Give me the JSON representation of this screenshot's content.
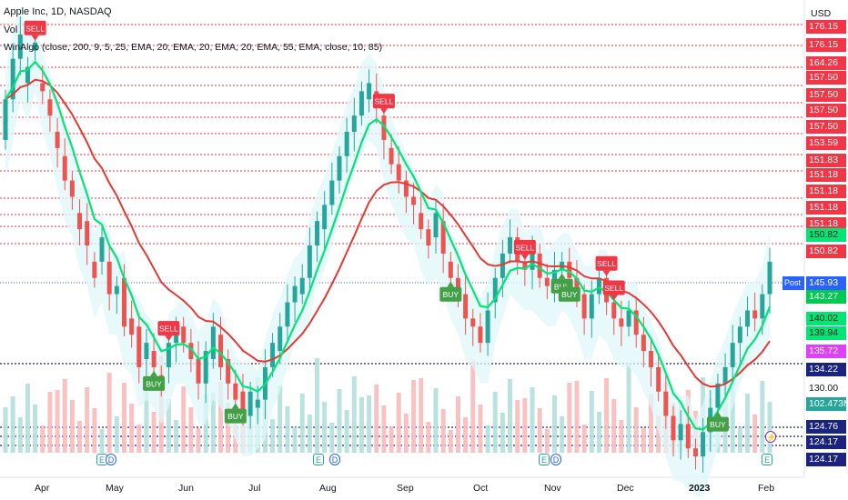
{
  "header": {
    "symbol_line": "Apple Inc, 1D, NASDAQ",
    "vol_label": "Vol",
    "indicator_line": "WinAlgo (close, 200, 9, 5, 25, EMA, 20, EMA, 20, EMA, 20, EMA, 55, EMA, close, 10, 85)"
  },
  "axis": {
    "currency": "USD",
    "months": [
      "Apr",
      "May",
      "Jun",
      "Jul",
      "Aug",
      "Sep",
      "Oct",
      "Nov",
      "Dec",
      "2023",
      "Feb"
    ]
  },
  "price_labels": [
    {
      "text": "176.15",
      "color": "#f23645",
      "fg": "#ffffff"
    },
    {
      "text": "176.15",
      "color": "#f23645",
      "fg": "#ffffff"
    },
    {
      "text": "164.26",
      "color": "#f23645",
      "fg": "#ffffff"
    },
    {
      "text": "157.50",
      "color": "#f23645",
      "fg": "#ffffff"
    },
    {
      "text": "157.50",
      "color": "#f23645",
      "fg": "#ffffff"
    },
    {
      "text": "157.50",
      "color": "#f23645",
      "fg": "#ffffff"
    },
    {
      "text": "157.50",
      "color": "#f23645",
      "fg": "#ffffff"
    },
    {
      "text": "153.59",
      "color": "#f23645",
      "fg": "#ffffff"
    },
    {
      "text": "151.83",
      "color": "#f23645",
      "fg": "#ffffff"
    },
    {
      "text": "151.18",
      "color": "#f23645",
      "fg": "#ffffff"
    },
    {
      "text": "151.18",
      "color": "#f23645",
      "fg": "#ffffff"
    },
    {
      "text": "151.18",
      "color": "#f23645",
      "fg": "#ffffff"
    },
    {
      "text": "151.18",
      "color": "#f23645",
      "fg": "#ffffff"
    },
    {
      "text": "150.82",
      "color": "#00e676",
      "fg": "#131722"
    },
    {
      "text": "150.82",
      "color": "#f23645",
      "fg": "#ffffff"
    },
    {
      "text": "145.93",
      "color": "#2962ff",
      "fg": "#ffffff"
    },
    {
      "text": "143.27",
      "color": "#00c853",
      "fg": "#ffffff"
    },
    {
      "text": "140.02",
      "color": "#00e676",
      "fg": "#131722"
    },
    {
      "text": "139.94",
      "color": "#00e676",
      "fg": "#131722"
    },
    {
      "text": "135.72",
      "color": "#e040fb",
      "fg": "#ffffff"
    },
    {
      "text": "134.22",
      "color": "#1a237e",
      "fg": "#ffffff"
    },
    {
      "text": "130.00",
      "color": "#ffffff",
      "fg": "#131722"
    },
    {
      "text": "102.473M",
      "color": "#26a69a",
      "fg": "#ffffff"
    },
    {
      "text": "124.76",
      "color": "#1a237e",
      "fg": "#ffffff"
    },
    {
      "text": "124.17",
      "color": "#1a237e",
      "fg": "#ffffff"
    },
    {
      "text": "124.17",
      "color": "#1a237e",
      "fg": "#ffffff"
    }
  ],
  "post_label": "Post",
  "signals": [
    {
      "type": "SELL",
      "label": "SELL"
    },
    {
      "type": "BUY",
      "label": "BUY"
    },
    {
      "type": "SELL",
      "label": "SELL"
    },
    {
      "type": "BUY",
      "label": "BUY"
    },
    {
      "type": "SELL",
      "label": "SELL"
    },
    {
      "type": "BUY",
      "label": "BUY"
    },
    {
      "type": "SELL",
      "label": "SELL"
    },
    {
      "type": "SELL",
      "label": "SELL"
    },
    {
      "type": "BUY",
      "label": "BUY"
    },
    {
      "type": "BUY",
      "label": "BUY"
    },
    {
      "type": "SELL",
      "label": "SELL"
    },
    {
      "type": "BUY",
      "label": "BUY"
    }
  ],
  "events": [
    {
      "kind": "E",
      "label": "E"
    },
    {
      "kind": "D",
      "label": "D"
    },
    {
      "kind": "E",
      "label": "E"
    },
    {
      "kind": "D",
      "label": "D"
    },
    {
      "kind": "E",
      "label": "E"
    },
    {
      "kind": "D",
      "label": "D"
    },
    {
      "kind": "E",
      "label": "E"
    }
  ],
  "colors": {
    "up": "#26a69a",
    "down": "#ef5350",
    "signal_sell": "#f23645",
    "signal_buy": "#43a047",
    "ema_red": "#e53935",
    "ema_green": "#00e676",
    "ema_yellow": "#ffeb3b"
  },
  "chart_data": {
    "type": "candlestick",
    "symbol": "Apple Inc",
    "interval": "1D",
    "exchange": "NASDAQ",
    "ylim": [
      124,
      180
    ],
    "x_months": [
      "Apr",
      "May",
      "Jun",
      "Jul",
      "Aug",
      "Sep",
      "Oct",
      "Nov",
      "Dec",
      "2023",
      "Feb"
    ],
    "price_path": [
      [
        165,
        170
      ],
      [
        170,
        175
      ],
      [
        175,
        178
      ],
      [
        172,
        174
      ],
      [
        176,
        177
      ],
      [
        172,
        171
      ],
      [
        170,
        168
      ],
      [
        166,
        164
      ],
      [
        163,
        160
      ],
      [
        160,
        158
      ],
      [
        156,
        154
      ],
      [
        155,
        152
      ],
      [
        150,
        148
      ],
      [
        150,
        153
      ],
      [
        150,
        146
      ],
      [
        146,
        147
      ],
      [
        148,
        142
      ],
      [
        143,
        141
      ],
      [
        142,
        137
      ],
      [
        138,
        140
      ],
      [
        139,
        137
      ],
      [
        136,
        135
      ],
      [
        137,
        140
      ],
      [
        140,
        141
      ],
      [
        142,
        140
      ],
      [
        140,
        138
      ],
      [
        138,
        135
      ],
      [
        135,
        139
      ],
      [
        138,
        142
      ],
      [
        141,
        137
      ],
      [
        138,
        135
      ],
      [
        135,
        133
      ],
      [
        134,
        131
      ],
      [
        131,
        134
      ],
      [
        132,
        133
      ],
      [
        133,
        137
      ],
      [
        137,
        140
      ],
      [
        139,
        142
      ],
      [
        142,
        145
      ],
      [
        145,
        147
      ],
      [
        146,
        148
      ],
      [
        148,
        152
      ],
      [
        152,
        155
      ],
      [
        154,
        157
      ],
      [
        157,
        160
      ],
      [
        160,
        163
      ],
      [
        163,
        166
      ],
      [
        166,
        168
      ],
      [
        168,
        171
      ],
      [
        170,
        172
      ],
      [
        171,
        169
      ],
      [
        168,
        165
      ],
      [
        164,
        162
      ],
      [
        162,
        160
      ],
      [
        160,
        158
      ],
      [
        158,
        157
      ],
      [
        156,
        154
      ],
      [
        154,
        152
      ],
      [
        153,
        156
      ],
      [
        155,
        151
      ],
      [
        150,
        148
      ],
      [
        148,
        146
      ],
      [
        146,
        143
      ],
      [
        143,
        142
      ],
      [
        142,
        140
      ],
      [
        140,
        144
      ],
      [
        145,
        148
      ],
      [
        148,
        151
      ],
      [
        151,
        153
      ],
      [
        153,
        150
      ],
      [
        150,
        149
      ],
      [
        149,
        151
      ],
      [
        151,
        148
      ],
      [
        148,
        147
      ],
      [
        147,
        149
      ],
      [
        149,
        150
      ],
      [
        150,
        148
      ],
      [
        148,
        146
      ],
      [
        146,
        143
      ],
      [
        143,
        146
      ],
      [
        146,
        148
      ],
      [
        148,
        145
      ],
      [
        145,
        143
      ],
      [
        143,
        142
      ],
      [
        142,
        144
      ],
      [
        144,
        141
      ],
      [
        141,
        139
      ],
      [
        139,
        137
      ],
      [
        137,
        134
      ],
      [
        134,
        131
      ],
      [
        131,
        128
      ],
      [
        128,
        130
      ],
      [
        130,
        127
      ],
      [
        127,
        126
      ],
      [
        126,
        129
      ],
      [
        129,
        132
      ],
      [
        132,
        135
      ],
      [
        135,
        137
      ],
      [
        137,
        140
      ],
      [
        140,
        142
      ],
      [
        142,
        144
      ],
      [
        144,
        143
      ],
      [
        143,
        146
      ],
      [
        146,
        150
      ]
    ],
    "horizontal_levels": [
      176.15,
      164.26,
      157.5,
      153.59,
      151.83,
      151.18,
      150.82,
      145.93,
      134.22,
      124.76,
      124.17
    ],
    "last_price": 150.82,
    "post_market_price": 145.93,
    "volume_last": "102.473M",
    "series": [
      {
        "name": "Vol",
        "type": "volume"
      },
      {
        "name": "WinAlgo",
        "type": "indicator"
      }
    ]
  }
}
